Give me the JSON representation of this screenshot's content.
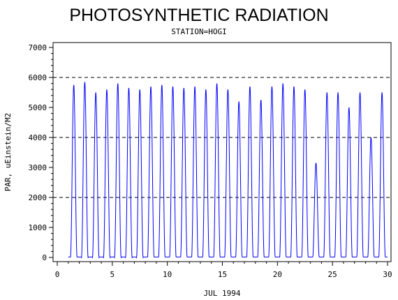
{
  "chart_data": {
    "type": "line",
    "title": "PHOTOSYNTHETIC RADIATION",
    "subtitle": "STATION=HOGI",
    "xlabel": "JUL 1994",
    "ylabel": "PAR, uEinstein/M2",
    "xlim": [
      0,
      30
    ],
    "ylim": [
      0,
      7000
    ],
    "x_ticks": [
      0,
      5,
      10,
      15,
      20,
      25,
      30
    ],
    "y_ticks": [
      0,
      1000,
      2000,
      3000,
      4000,
      5000,
      6000,
      7000
    ],
    "reference_lines": [
      2000,
      4000,
      6000
    ],
    "line_color": "#0000ff",
    "grid": false,
    "series": [
      {
        "day_noon": [
          1.5,
          2.5,
          3.5,
          4.5,
          5.5,
          6.5,
          7.5,
          8.5,
          9.5,
          10.5,
          11.5,
          12.5,
          13.5,
          14.5,
          15.5,
          16.5,
          17.5,
          18.5,
          19.5,
          20.5,
          21.5,
          22.5,
          23.5,
          24.5,
          25.5,
          26.5,
          27.5,
          28.5,
          29.5
        ],
        "daily_peak": [
          5750,
          5850,
          5500,
          5600,
          5800,
          5650,
          5600,
          5700,
          5750,
          5700,
          5650,
          5700,
          5600,
          5800,
          5600,
          5200,
          5700,
          5250,
          5700,
          5800,
          5700,
          5600,
          3150,
          5500,
          5500,
          5000,
          5500,
          4000,
          5500
        ]
      }
    ]
  }
}
